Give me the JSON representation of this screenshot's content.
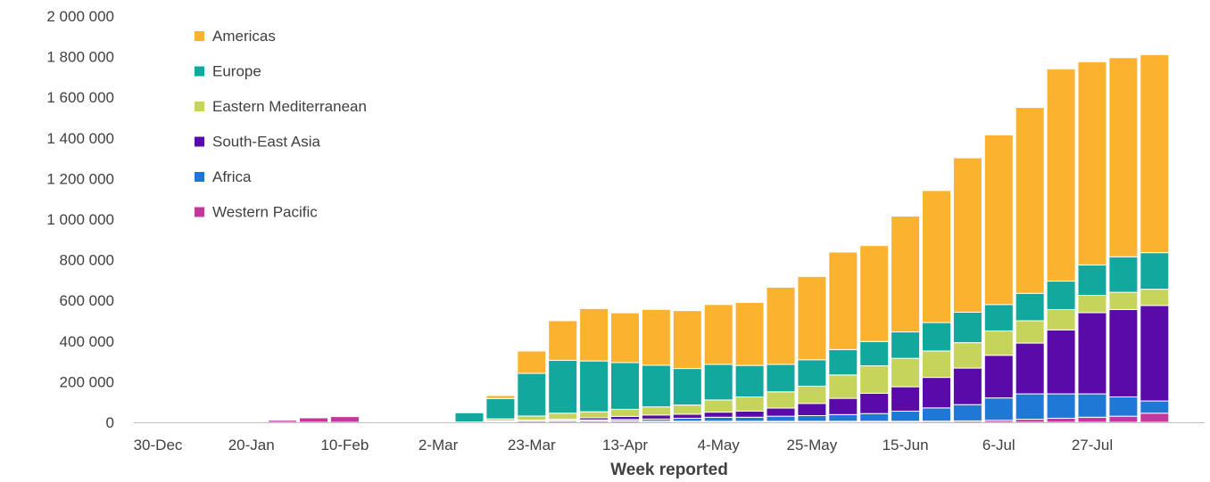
{
  "chart_data": {
    "type": "bar",
    "stacked": true,
    "title": "",
    "xlabel": "Week reported",
    "ylabel": "",
    "ylim": [
      0,
      2000000
    ],
    "y_ticks": [
      0,
      200000,
      400000,
      600000,
      800000,
      1000000,
      1200000,
      1400000,
      1600000,
      1800000,
      2000000
    ],
    "y_tick_labels": [
      "0",
      "200 000",
      "400 000",
      "600 000",
      "800 000",
      "1 000 000",
      "1 200 000",
      "1 400 000",
      "1 600 000",
      "1 800 000",
      "2 000 000"
    ],
    "x_tick_labels": [
      "30-Dec",
      "20-Jan",
      "10-Feb",
      "2-Mar",
      "23-Mar",
      "13-Apr",
      "4-May",
      "25-May",
      "15-Jun",
      "6-Jul",
      "27-Jul"
    ],
    "x_tick_every": 3,
    "grid": false,
    "legend_position": "top-left",
    "categories": [
      "30-Dec",
      "6-Jan",
      "13-Jan",
      "20-Jan",
      "27-Jan",
      "3-Feb",
      "10-Feb",
      "17-Feb",
      "24-Feb",
      "2-Mar",
      "9-Mar",
      "16-Mar",
      "23-Mar",
      "30-Mar",
      "6-Apr",
      "13-Apr",
      "20-Apr",
      "27-Apr",
      "4-May",
      "11-May",
      "18-May",
      "25-May",
      "1-Jun",
      "8-Jun",
      "15-Jun",
      "22-Jun",
      "29-Jun",
      "6-Jul",
      "13-Jul",
      "20-Jul",
      "27-Jul",
      "3-Aug",
      "10-Aug"
    ],
    "series": [
      {
        "name": "Western Pacific",
        "color": "#c0399b",
        "values": [
          0,
          0,
          0,
          0,
          10000,
          22000,
          28000,
          0,
          0,
          0,
          2000,
          5000,
          7000,
          7000,
          7000,
          7000,
          6000,
          5000,
          5000,
          5000,
          5000,
          5000,
          5000,
          5000,
          5000,
          6000,
          7000,
          10000,
          15000,
          20000,
          25000,
          30000,
          45000
        ]
      },
      {
        "name": "Africa",
        "color": "#1f77d6",
        "values": [
          0,
          0,
          0,
          0,
          0,
          0,
          0,
          0,
          0,
          0,
          0,
          1000,
          2000,
          3000,
          5000,
          7000,
          10000,
          15000,
          20000,
          20000,
          25000,
          28000,
          33000,
          38000,
          50000,
          65000,
          80000,
          110000,
          125000,
          120000,
          115000,
          95000,
          60000
        ]
      },
      {
        "name": "South-East Asia",
        "color": "#5a0aa8",
        "values": [
          0,
          0,
          0,
          0,
          0,
          0,
          0,
          0,
          0,
          0,
          0,
          1000,
          2000,
          5000,
          10000,
          15000,
          20000,
          20000,
          25000,
          30000,
          40000,
          60000,
          80000,
          100000,
          120000,
          150000,
          180000,
          210000,
          250000,
          315000,
          400000,
          430000,
          470000
        ]
      },
      {
        "name": "Eastern Mediterranean",
        "color": "#c6d45b",
        "values": [
          0,
          0,
          0,
          0,
          0,
          0,
          0,
          0,
          0,
          0,
          0,
          10000,
          20000,
          30000,
          30000,
          35000,
          40000,
          45000,
          60000,
          70000,
          80000,
          85000,
          115000,
          135000,
          140000,
          130000,
          125000,
          120000,
          110000,
          100000,
          85000,
          85000,
          80000
        ]
      },
      {
        "name": "Europe",
        "color": "#13a89e",
        "values": [
          0,
          0,
          0,
          0,
          0,
          0,
          0,
          0,
          0,
          0,
          45000,
          100000,
          210000,
          260000,
          250000,
          230000,
          205000,
          180000,
          175000,
          155000,
          135000,
          130000,
          125000,
          120000,
          130000,
          140000,
          150000,
          130000,
          135000,
          140000,
          150000,
          175000,
          180000
        ]
      },
      {
        "name": "Americas",
        "color": "#fbb32f",
        "values": [
          0,
          0,
          0,
          0,
          0,
          0,
          0,
          0,
          0,
          0,
          0,
          15000,
          110000,
          195000,
          258000,
          245000,
          275000,
          285000,
          295000,
          310000,
          380000,
          410000,
          480000,
          472000,
          570000,
          650000,
          760000,
          835000,
          915000,
          1045000,
          1000000,
          980000,
          975000
        ]
      }
    ]
  }
}
